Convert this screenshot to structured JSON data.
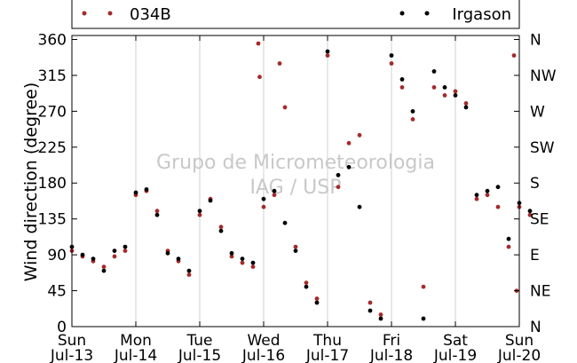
{
  "chart_data": {
    "type": "scatter",
    "title": "",
    "ylabel": "Wind direction (degree)",
    "xlabel": "",
    "ylim": [
      0,
      365
    ],
    "yticks": [
      0,
      45,
      90,
      135,
      180,
      225,
      270,
      315,
      360
    ],
    "right_axis_labels": [
      "N",
      "NE",
      "E",
      "SE",
      "S",
      "SW",
      "W",
      "NW",
      "N"
    ],
    "x_tick_labels": [
      {
        "day": "Sun",
        "date": "Jul-13"
      },
      {
        "day": "Mon",
        "date": "Jul-14"
      },
      {
        "day": "Tue",
        "date": "Jul-15"
      },
      {
        "day": "Wed",
        "date": "Jul-16"
      },
      {
        "day": "Thu",
        "date": "Jul-17"
      },
      {
        "day": "Fri",
        "date": "Jul-18"
      },
      {
        "day": "Sat",
        "date": "Jul-19"
      },
      {
        "day": "Sun",
        "date": "Jul-20"
      }
    ],
    "xlim": [
      "Jul-13",
      "Jul-20"
    ],
    "grid": "vertical",
    "legend": "top",
    "watermark": [
      "Grupo de Micrometeorologia",
      "IAG / USP"
    ],
    "series": [
      {
        "name": "034B",
        "color": "#a52a2a",
        "points": [
          [
            "Jul-13 00:00",
            95
          ],
          [
            "Jul-13 04:00",
            88
          ],
          [
            "Jul-13 08:00",
            82
          ],
          [
            "Jul-13 12:00",
            75
          ],
          [
            "Jul-13 16:00",
            88
          ],
          [
            "Jul-13 20:00",
            95
          ],
          [
            "Jul-14 00:00",
            165
          ],
          [
            "Jul-14 04:00",
            170
          ],
          [
            "Jul-14 08:00",
            145
          ],
          [
            "Jul-14 12:00",
            95
          ],
          [
            "Jul-14 16:00",
            82
          ],
          [
            "Jul-14 20:00",
            65
          ],
          [
            "Jul-15 00:00",
            140
          ],
          [
            "Jul-15 04:00",
            160
          ],
          [
            "Jul-15 08:00",
            125
          ],
          [
            "Jul-15 12:00",
            88
          ],
          [
            "Jul-15 16:00",
            80
          ],
          [
            "Jul-15 20:00",
            75
          ],
          [
            "Jul-15 22:00",
            355
          ],
          [
            "Jul-15 22:30",
            313
          ],
          [
            "Jul-16 00:00",
            150
          ],
          [
            "Jul-16 04:00",
            165
          ],
          [
            "Jul-16 06:00",
            330
          ],
          [
            "Jul-16 08:00",
            275
          ],
          [
            "Jul-16 12:00",
            100
          ],
          [
            "Jul-16 16:00",
            55
          ],
          [
            "Jul-16 20:00",
            35
          ],
          [
            "Jul-17 00:00",
            340
          ],
          [
            "Jul-17 04:00",
            175
          ],
          [
            "Jul-17 08:00",
            230
          ],
          [
            "Jul-17 12:00",
            240
          ],
          [
            "Jul-17 16:00",
            30
          ],
          [
            "Jul-17 20:00",
            15
          ],
          [
            "Jul-18 00:00",
            330
          ],
          [
            "Jul-18 04:00",
            300
          ],
          [
            "Jul-18 08:00",
            260
          ],
          [
            "Jul-18 12:00",
            50
          ],
          [
            "Jul-18 16:00",
            300
          ],
          [
            "Jul-18 20:00",
            290
          ],
          [
            "Jul-19 00:00",
            295
          ],
          [
            "Jul-19 04:00",
            280
          ],
          [
            "Jul-19 08:00",
            160
          ],
          [
            "Jul-19 12:00",
            165
          ],
          [
            "Jul-19 16:00",
            150
          ],
          [
            "Jul-19 20:00",
            100
          ],
          [
            "Jul-19 22:00",
            340
          ],
          [
            "Jul-19 23:00",
            45
          ],
          [
            "Jul-20 00:00",
            150
          ],
          [
            "Jul-20 04:00",
            140
          ]
        ]
      },
      {
        "name": "Irgason",
        "color": "#000000",
        "points": [
          [
            "Jul-13 00:00",
            100
          ],
          [
            "Jul-13 04:00",
            90
          ],
          [
            "Jul-13 08:00",
            85
          ],
          [
            "Jul-13 12:00",
            70
          ],
          [
            "Jul-13 16:00",
            95
          ],
          [
            "Jul-13 20:00",
            100
          ],
          [
            "Jul-14 00:00",
            168
          ],
          [
            "Jul-14 04:00",
            172
          ],
          [
            "Jul-14 08:00",
            140
          ],
          [
            "Jul-14 12:00",
            92
          ],
          [
            "Jul-14 16:00",
            85
          ],
          [
            "Jul-14 20:00",
            70
          ],
          [
            "Jul-15 00:00",
            145
          ],
          [
            "Jul-15 04:00",
            158
          ],
          [
            "Jul-15 08:00",
            120
          ],
          [
            "Jul-15 12:00",
            92
          ],
          [
            "Jul-15 16:00",
            85
          ],
          [
            "Jul-15 20:00",
            80
          ],
          [
            "Jul-16 00:00",
            160
          ],
          [
            "Jul-16 04:00",
            170
          ],
          [
            "Jul-16 08:00",
            130
          ],
          [
            "Jul-16 12:00",
            95
          ],
          [
            "Jul-16 16:00",
            50
          ],
          [
            "Jul-16 20:00",
            30
          ],
          [
            "Jul-17 00:00",
            345
          ],
          [
            "Jul-17 04:00",
            190
          ],
          [
            "Jul-17 08:00",
            200
          ],
          [
            "Jul-17 12:00",
            150
          ],
          [
            "Jul-17 16:00",
            20
          ],
          [
            "Jul-17 20:00",
            10
          ],
          [
            "Jul-18 00:00",
            340
          ],
          [
            "Jul-18 04:00",
            310
          ],
          [
            "Jul-18 08:00",
            270
          ],
          [
            "Jul-18 12:00",
            10
          ],
          [
            "Jul-18 16:00",
            320
          ],
          [
            "Jul-18 20:00",
            300
          ],
          [
            "Jul-19 00:00",
            290
          ],
          [
            "Jul-19 04:00",
            275
          ],
          [
            "Jul-19 08:00",
            165
          ],
          [
            "Jul-19 12:00",
            170
          ],
          [
            "Jul-19 16:00",
            175
          ],
          [
            "Jul-19 20:00",
            110
          ],
          [
            "Jul-20 00:00",
            155
          ],
          [
            "Jul-20 04:00",
            145
          ]
        ]
      }
    ]
  }
}
